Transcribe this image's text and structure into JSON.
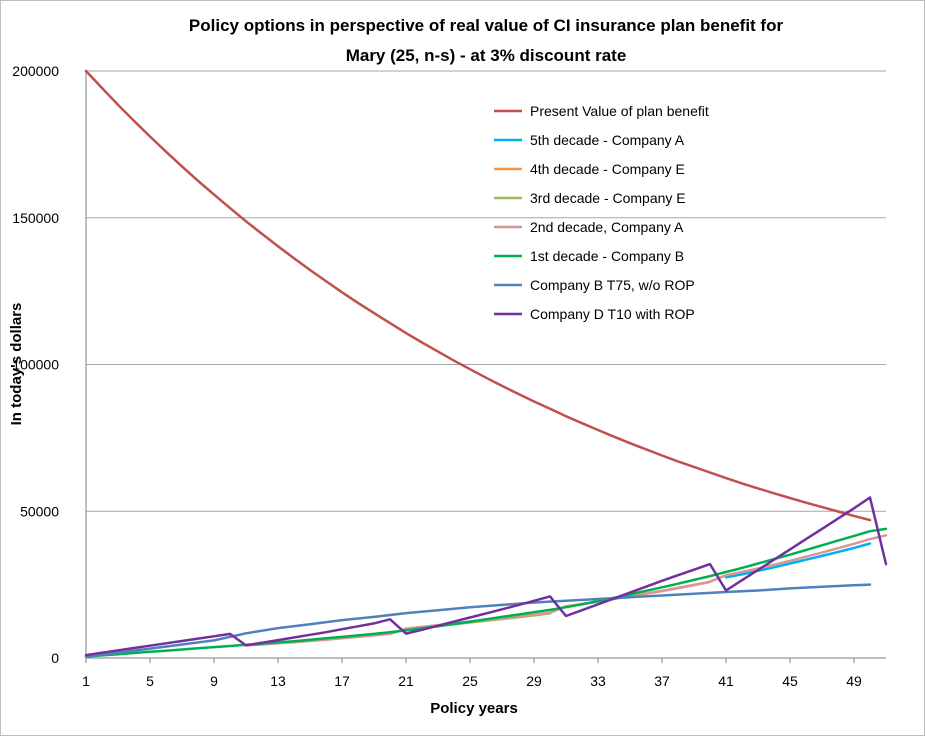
{
  "chart_data": {
    "type": "line",
    "title_line1": "Policy options in perspective of real value of CI insurance plan benefit for",
    "title_line2": "Mary (25, n-s) - at 3% discount rate",
    "xlabel": "Policy years",
    "ylabel": "In today's dollars",
    "xlim": [
      1,
      51
    ],
    "ylim": [
      0,
      200000
    ],
    "x_ticks": [
      1,
      5,
      9,
      13,
      17,
      21,
      25,
      29,
      33,
      37,
      41,
      45,
      49
    ],
    "y_ticks": [
      0,
      50000,
      100000,
      150000,
      200000
    ],
    "grid": true,
    "legend_position": "top-right",
    "series": [
      {
        "name": "Present Value of plan benefit",
        "color": "#C0504D",
        "values": [
          [
            1,
            200000
          ],
          [
            2,
            194200
          ],
          [
            3,
            188500
          ],
          [
            4,
            183000
          ],
          [
            5,
            177700
          ],
          [
            6,
            172500
          ],
          [
            7,
            167500
          ],
          [
            8,
            162600
          ],
          [
            9,
            157900
          ],
          [
            10,
            153300
          ],
          [
            11,
            148800
          ],
          [
            12,
            144500
          ],
          [
            13,
            140300
          ],
          [
            14,
            136200
          ],
          [
            15,
            132200
          ],
          [
            16,
            128400
          ],
          [
            17,
            124600
          ],
          [
            18,
            121000
          ],
          [
            19,
            117500
          ],
          [
            20,
            114100
          ],
          [
            21,
            110700
          ],
          [
            22,
            107500
          ],
          [
            23,
            104400
          ],
          [
            24,
            101300
          ],
          [
            25,
            98400
          ],
          [
            26,
            95500
          ],
          [
            27,
            92700
          ],
          [
            28,
            90000
          ],
          [
            29,
            87400
          ],
          [
            30,
            84900
          ],
          [
            31,
            82400
          ],
          [
            32,
            80000
          ],
          [
            33,
            77700
          ],
          [
            34,
            75400
          ],
          [
            35,
            73200
          ],
          [
            36,
            71100
          ],
          [
            37,
            69000
          ],
          [
            38,
            67000
          ],
          [
            39,
            65100
          ],
          [
            40,
            63200
          ],
          [
            41,
            61300
          ],
          [
            42,
            59500
          ],
          [
            43,
            57800
          ],
          [
            44,
            56100
          ],
          [
            45,
            54500
          ],
          [
            46,
            52900
          ],
          [
            47,
            51400
          ],
          [
            48,
            49900
          ],
          [
            49,
            48400
          ],
          [
            50,
            47000
          ]
        ]
      },
      {
        "name": "5th decade - Company A",
        "color": "#00B0F0",
        "values": [
          [
            41,
            27500
          ],
          [
            42,
            28500
          ],
          [
            43,
            29700
          ],
          [
            44,
            30900
          ],
          [
            45,
            32200
          ],
          [
            46,
            33500
          ],
          [
            47,
            34800
          ],
          [
            48,
            36100
          ],
          [
            49,
            37500
          ],
          [
            50,
            39000
          ]
        ]
      },
      {
        "name": "4th decade - Company E",
        "color": "#F79646",
        "values": [
          [
            31,
            17500
          ],
          [
            32,
            18300
          ],
          [
            33,
            19200
          ],
          [
            34,
            20100
          ],
          [
            35,
            21000
          ],
          [
            36,
            21900
          ],
          [
            37,
            22800
          ],
          [
            38,
            23800
          ],
          [
            39,
            24800
          ],
          [
            40,
            25900
          ]
        ]
      },
      {
        "name": "3rd decade - Company E",
        "color": "#9BBB59",
        "values": [
          [
            21,
            10000
          ],
          [
            22,
            10500
          ],
          [
            23,
            11000
          ],
          [
            24,
            11500
          ],
          [
            25,
            12100
          ],
          [
            26,
            12700
          ],
          [
            27,
            13300
          ],
          [
            28,
            13900
          ],
          [
            29,
            14500
          ],
          [
            30,
            15200
          ]
        ]
      },
      {
        "name": "2nd decade, Company A",
        "color": "#E6B9B8",
        "strokeColor": "#D99694",
        "values": [
          [
            11,
            4300
          ],
          [
            12,
            4600
          ],
          [
            13,
            5000
          ],
          [
            14,
            5400
          ],
          [
            15,
            5800
          ],
          [
            16,
            6200
          ],
          [
            17,
            6700
          ],
          [
            18,
            7200
          ],
          [
            19,
            7700
          ],
          [
            20,
            8200
          ],
          [
            21,
            10000
          ],
          [
            22,
            10600
          ],
          [
            23,
            11200
          ],
          [
            24,
            11800
          ],
          [
            25,
            12400
          ],
          [
            26,
            13000
          ],
          [
            27,
            13600
          ],
          [
            28,
            14200
          ],
          [
            29,
            14800
          ],
          [
            30,
            15400
          ],
          [
            31,
            17600
          ],
          [
            32,
            18400
          ],
          [
            33,
            19300
          ],
          [
            34,
            20200
          ],
          [
            35,
            21100
          ],
          [
            36,
            22000
          ],
          [
            37,
            22900
          ],
          [
            38,
            23900
          ],
          [
            39,
            24900
          ],
          [
            40,
            26000
          ],
          [
            41,
            28200
          ],
          [
            42,
            29300
          ],
          [
            43,
            30500
          ],
          [
            44,
            31800
          ],
          [
            45,
            33100
          ],
          [
            46,
            34500
          ],
          [
            47,
            35900
          ],
          [
            48,
            37400
          ],
          [
            49,
            38900
          ],
          [
            50,
            40500
          ],
          [
            51,
            41800
          ]
        ]
      },
      {
        "name": "1st decade - Company B",
        "color": "#00B050",
        "values": [
          [
            1,
            500
          ],
          [
            2,
            900
          ],
          [
            3,
            1300
          ],
          [
            4,
            1700
          ],
          [
            5,
            2100
          ],
          [
            6,
            2500
          ],
          [
            7,
            2900
          ],
          [
            8,
            3300
          ],
          [
            9,
            3700
          ],
          [
            10,
            4100
          ],
          [
            11,
            4500
          ],
          [
            12,
            4900
          ],
          [
            13,
            5300
          ],
          [
            14,
            5700
          ],
          [
            15,
            6200
          ],
          [
            16,
            6700
          ],
          [
            17,
            7200
          ],
          [
            18,
            7700
          ],
          [
            19,
            8200
          ],
          [
            20,
            8800
          ],
          [
            21,
            9400
          ],
          [
            22,
            10100
          ],
          [
            23,
            10800
          ],
          [
            24,
            11600
          ],
          [
            25,
            12400
          ],
          [
            26,
            13200
          ],
          [
            27,
            14000
          ],
          [
            28,
            14800
          ],
          [
            29,
            15600
          ],
          [
            30,
            16400
          ],
          [
            31,
            17300
          ],
          [
            32,
            18300
          ],
          [
            33,
            19400
          ],
          [
            34,
            20500
          ],
          [
            35,
            21700
          ],
          [
            36,
            22900
          ],
          [
            37,
            24100
          ],
          [
            38,
            25300
          ],
          [
            39,
            26600
          ],
          [
            40,
            27900
          ],
          [
            41,
            29300
          ],
          [
            42,
            30700
          ],
          [
            43,
            32200
          ],
          [
            44,
            33700
          ],
          [
            45,
            35200
          ],
          [
            46,
            36800
          ],
          [
            47,
            38400
          ],
          [
            48,
            40000
          ],
          [
            49,
            41600
          ],
          [
            50,
            43200
          ],
          [
            51,
            44000
          ]
        ]
      },
      {
        "name": "Company B T75, w/o ROP",
        "color": "#4F81BD",
        "values": [
          [
            1,
            500
          ],
          [
            3,
            1800
          ],
          [
            5,
            3200
          ],
          [
            7,
            4600
          ],
          [
            9,
            6000
          ],
          [
            11,
            8400
          ],
          [
            13,
            10200
          ],
          [
            15,
            11500
          ],
          [
            17,
            12900
          ],
          [
            19,
            14000
          ],
          [
            21,
            15300
          ],
          [
            23,
            16300
          ],
          [
            25,
            17300
          ],
          [
            27,
            18100
          ],
          [
            29,
            18900
          ],
          [
            31,
            19500
          ],
          [
            33,
            20100
          ],
          [
            35,
            20700
          ],
          [
            37,
            21300
          ],
          [
            39,
            21900
          ],
          [
            41,
            22500
          ],
          [
            43,
            23000
          ],
          [
            45,
            23700
          ],
          [
            47,
            24300
          ],
          [
            49,
            24800
          ],
          [
            50,
            25000
          ]
        ]
      },
      {
        "name": "Company D T10 with ROP",
        "color": "#7030A0",
        "values": [
          [
            1,
            1000
          ],
          [
            2,
            1800
          ],
          [
            3,
            2600
          ],
          [
            4,
            3400
          ],
          [
            5,
            4200
          ],
          [
            6,
            5000
          ],
          [
            7,
            5800
          ],
          [
            8,
            6600
          ],
          [
            9,
            7400
          ],
          [
            10,
            8200
          ],
          [
            11,
            4300
          ],
          [
            12,
            5200
          ],
          [
            13,
            6100
          ],
          [
            14,
            7000
          ],
          [
            15,
            7900
          ],
          [
            16,
            8800
          ],
          [
            17,
            9800
          ],
          [
            18,
            10800
          ],
          [
            19,
            11800
          ],
          [
            20,
            13200
          ],
          [
            21,
            8300
          ],
          [
            22,
            9600
          ],
          [
            23,
            11000
          ],
          [
            24,
            12400
          ],
          [
            25,
            13800
          ],
          [
            26,
            15200
          ],
          [
            27,
            16600
          ],
          [
            28,
            18000
          ],
          [
            29,
            19500
          ],
          [
            30,
            21000
          ],
          [
            31,
            14300
          ],
          [
            32,
            16300
          ],
          [
            33,
            18300
          ],
          [
            34,
            20300
          ],
          [
            35,
            22300
          ],
          [
            36,
            24300
          ],
          [
            37,
            26300
          ],
          [
            38,
            28200
          ],
          [
            39,
            30100
          ],
          [
            40,
            32000
          ],
          [
            41,
            23000
          ],
          [
            42,
            26500
          ],
          [
            43,
            30000
          ],
          [
            44,
            33500
          ],
          [
            45,
            37000
          ],
          [
            46,
            40500
          ],
          [
            47,
            44000
          ],
          [
            48,
            47500
          ],
          [
            49,
            51000
          ],
          [
            50,
            54700
          ],
          [
            51,
            32000
          ]
        ]
      }
    ]
  }
}
